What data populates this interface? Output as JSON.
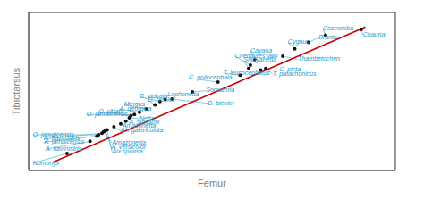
{
  "chart_data": {
    "type": "scatter",
    "title": "",
    "xlabel": "Femur",
    "ylabel": "Tibiotarsus",
    "xlim": [
      0.0,
      0.43
    ],
    "ylim": [
      0.02,
      0.41
    ],
    "xticks": [],
    "yticks": [],
    "tick_labels": false,
    "grid": false,
    "series": [
      {
        "type": "line",
        "color": "#cc0000",
        "x": [
          0.028,
          0.395
        ],
        "values": [
          0.04,
          0.374
        ]
      },
      {
        "type": "scatter",
        "color": "#111111",
        "label_color": "#2299cc",
        "leader_color": "#44aacc",
        "x": [
          0.045,
          0.072,
          0.08,
          0.082,
          0.086,
          0.088,
          0.09,
          0.092,
          0.1,
          0.108,
          0.114,
          0.118,
          0.12,
          0.124,
          0.13,
          0.138,
          0.148,
          0.154,
          0.16,
          0.168,
          0.192,
          0.222,
          0.248,
          0.258,
          0.26,
          0.265,
          0.272,
          0.278,
          0.298,
          0.312,
          0.328,
          0.348,
          0.39
        ],
        "values": [
          0.062,
          0.092,
          0.105,
          0.108,
          0.112,
          0.116,
          0.118,
          0.12,
          0.128,
          0.135,
          0.142,
          0.15,
          0.155,
          0.158,
          0.164,
          0.172,
          0.182,
          0.19,
          0.195,
          0.196,
          0.214,
          0.238,
          0.255,
          0.272,
          0.28,
          0.294,
          0.268,
          0.272,
          0.302,
          0.32,
          0.336,
          0.354,
          0.368
        ],
        "labels": [
          "Nomonyx",
          "A. flavirostris",
          "A. jamaicensis",
          "O. jamaicensis",
          "A. flavirostris",
          "Amazonetta",
          "A. versicolor",
          "Aix sponsa",
          "Aix galericulata",
          "Amazonetta",
          "A. sibilatrix",
          "Netta",
          "O. vittata",
          "O. jamaicensis",
          "A. georgica",
          "Mergus",
          "D. bicolor",
          "D. viduata",
          "Lophonetta",
          "D. bicolor",
          "Somateria",
          "C. poliocephala",
          "T. leucocephalus",
          "Shiriyanetta",
          "Chendytes lawi",
          "Cayaoa",
          "C. picta",
          "T. patachonicus",
          "Thambetochen",
          "Cygnus",
          "Branta",
          "Coscoroba",
          "Chauna"
        ],
        "label_x": [
          0.005,
          0.02,
          0.018,
          0.005,
          0.018,
          0.098,
          0.097,
          0.098,
          0.108,
          0.11,
          0.118,
          0.13,
          0.082,
          0.068,
          0.107,
          0.112,
          0.14,
          0.13,
          0.163,
          0.21,
          0.208,
          0.188,
          0.228,
          0.252,
          0.242,
          0.26,
          0.294,
          0.286,
          0.316,
          0.304,
          0.34,
          0.345,
          0.392
        ],
        "label_y": [
          0.038,
          0.072,
          0.09,
          0.108,
          0.098,
          0.088,
          0.076,
          0.065,
          0.118,
          0.13,
          0.138,
          0.148,
          0.165,
          0.158,
          0.172,
          0.182,
          0.193,
          0.202,
          0.207,
          0.186,
          0.217,
          0.248,
          0.26,
          0.292,
          0.302,
          0.316,
          0.268,
          0.258,
          0.294,
          0.336,
          0.348,
          0.37,
          0.354
        ]
      }
    ]
  }
}
